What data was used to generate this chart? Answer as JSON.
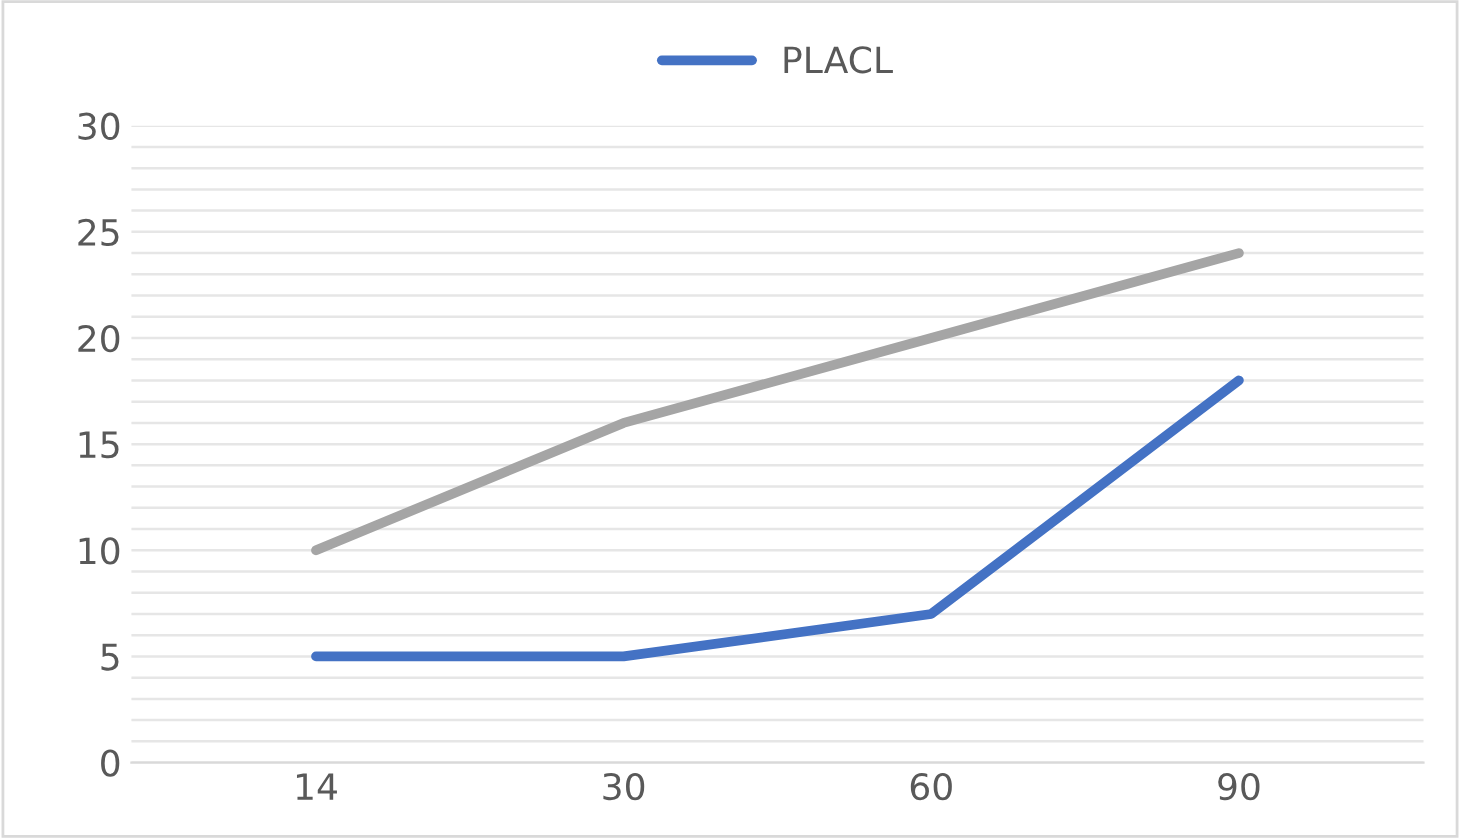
{
  "chart_data": {
    "type": "line",
    "categories": [
      "14",
      "30",
      "60",
      "90"
    ],
    "series": [
      {
        "name": "PLACL",
        "color": "#4472c4",
        "values": [
          5,
          5,
          7,
          18
        ]
      },
      {
        "color": "#a5a5a5",
        "values": [
          10,
          16,
          20,
          24
        ]
      }
    ],
    "ylim": [
      0,
      30
    ],
    "yticks": [
      0,
      {
        "value": 1,
        "label": null
      },
      {
        "value": 2,
        "label": null
      },
      {
        "value": 3,
        "label": null
      },
      {
        "value": 4,
        "label": null
      },
      5,
      {
        "value": 6,
        "label": null
      },
      {
        "value": 7,
        "label": null
      },
      {
        "value": 8,
        "label": null
      },
      {
        "value": 9,
        "label": null
      },
      10,
      {
        "value": 11,
        "label": null
      },
      {
        "value": 12,
        "label": null
      },
      {
        "value": 13,
        "label": null
      },
      {
        "value": 14,
        "label": null
      },
      15,
      {
        "value": 16,
        "label": null
      },
      {
        "value": 17,
        "label": null
      },
      {
        "value": 18,
        "label": null
      },
      {
        "value": 19,
        "label": null
      },
      20,
      {
        "value": 21,
        "label": null
      },
      {
        "value": 22,
        "label": null
      },
      {
        "value": 23,
        "label": null
      },
      {
        "value": 24,
        "label": null
      },
      25,
      {
        "value": 26,
        "label": null
      },
      {
        "value": 27,
        "label": null
      },
      {
        "value": 28,
        "label": null
      },
      {
        "value": 29,
        "label": null
      },
      30
    ],
    "grid": "y",
    "legend": "top",
    "marker": "none",
    "line_style": "solid"
  }
}
